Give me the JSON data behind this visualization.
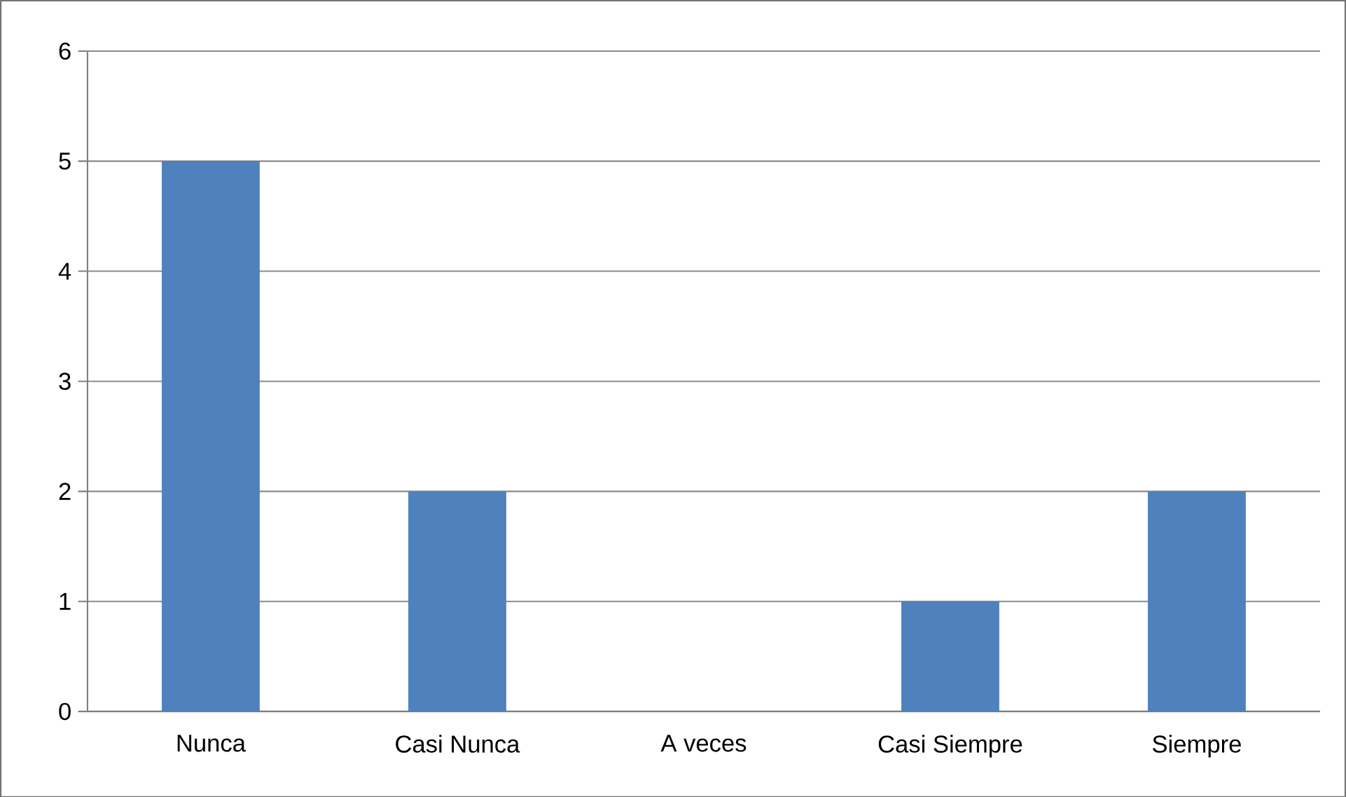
{
  "chart_data": {
    "type": "bar",
    "categories": [
      "Nunca",
      "Casi Nunca",
      "A veces",
      "Casi Siempre",
      "Siempre"
    ],
    "values": [
      5,
      2,
      0,
      1,
      2
    ],
    "color": "#4f81bd",
    "ylim": [
      0,
      6
    ],
    "yticks": [
      0,
      1,
      2,
      3,
      4,
      5,
      6
    ],
    "grid": "y"
  }
}
